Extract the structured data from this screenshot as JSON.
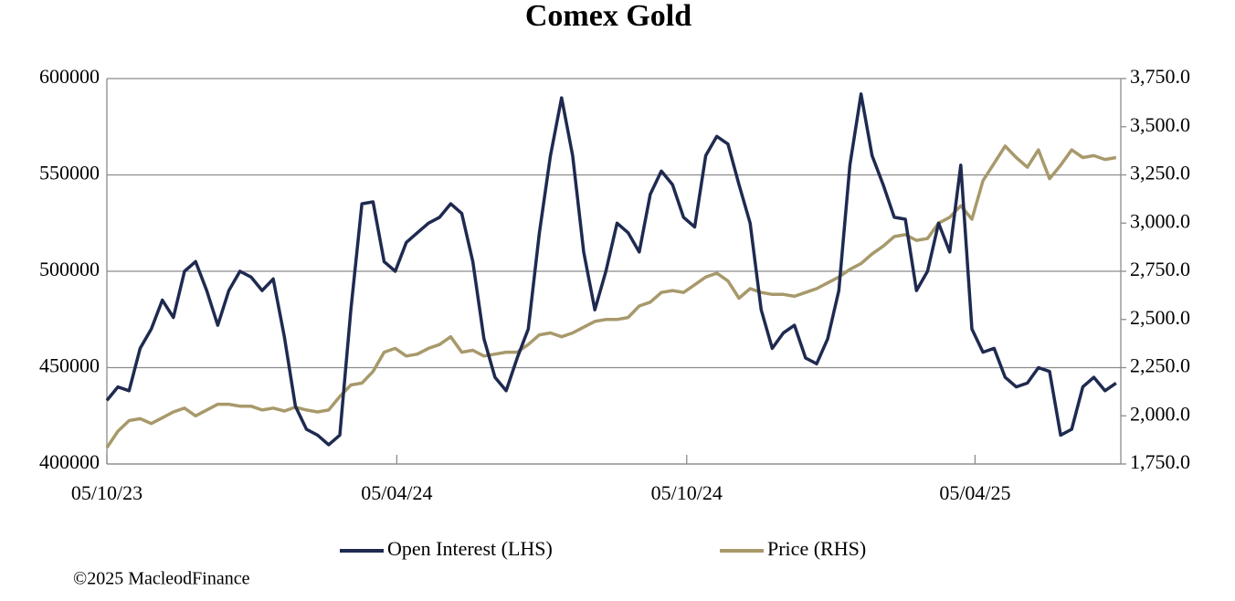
{
  "chart_data": {
    "type": "line",
    "title": "Comex Gold",
    "footnote": "©2025 MacleodFinance",
    "x": [
      "05/10/23",
      "12/10/23",
      "19/10/23",
      "26/10/23",
      "02/11/23",
      "09/11/23",
      "16/11/23",
      "23/11/23",
      "30/11/23",
      "07/12/23",
      "14/12/23",
      "21/12/23",
      "28/12/23",
      "04/01/24",
      "11/01/24",
      "18/01/24",
      "25/01/24",
      "01/02/24",
      "08/02/24",
      "15/02/24",
      "22/02/24",
      "29/02/24",
      "07/03/24",
      "14/03/24",
      "21/03/24",
      "28/03/24",
      "04/04/24",
      "11/04/24",
      "18/04/24",
      "25/04/24",
      "02/05/24",
      "09/05/24",
      "16/05/24",
      "23/05/24",
      "30/05/24",
      "06/06/24",
      "13/06/24",
      "20/06/24",
      "27/06/24",
      "04/07/24",
      "11/07/24",
      "18/07/24",
      "25/07/24",
      "01/08/24",
      "08/08/24",
      "15/08/24",
      "22/08/24",
      "29/08/24",
      "05/09/24",
      "12/09/24",
      "19/09/24",
      "26/09/24",
      "03/10/24",
      "10/10/24",
      "17/10/24",
      "24/10/24",
      "31/10/24",
      "07/11/24",
      "14/11/24",
      "21/11/24",
      "28/11/24",
      "05/12/24",
      "12/12/24",
      "19/12/24",
      "26/12/24",
      "02/01/25",
      "09/01/25",
      "16/01/25",
      "23/01/25",
      "30/01/25",
      "06/02/25",
      "13/02/25",
      "20/02/25",
      "27/02/25",
      "06/03/25",
      "13/03/25",
      "20/03/25",
      "27/03/25",
      "03/04/25",
      "10/04/25",
      "17/04/25",
      "24/04/25",
      "01/05/25",
      "08/05/25",
      "15/05/25",
      "22/05/25",
      "29/05/25",
      "05/06/25",
      "12/06/25",
      "19/06/25",
      "26/06/25",
      "03/07/25"
    ],
    "series": [
      {
        "name": "Open Interest (LHS)",
        "color": "#1f2a50",
        "values": [
          433000,
          440000,
          438000,
          460000,
          470000,
          485000,
          476000,
          500000,
          505000,
          490000,
          472000,
          490000,
          500000,
          497000,
          490000,
          496000,
          466000,
          430000,
          418000,
          415000,
          410000,
          415000,
          480000,
          535000,
          536000,
          505000,
          500000,
          515000,
          520000,
          525000,
          528000,
          535000,
          530000,
          505000,
          465000,
          445000,
          438000,
          455000,
          470000,
          520000,
          560000,
          590000,
          560000,
          510000,
          480000,
          500000,
          525000,
          520000,
          510000,
          540000,
          552000,
          545000,
          528000,
          523000,
          560000,
          570000,
          566000,
          545000,
          525000,
          480000,
          460000,
          468000,
          472000,
          455000,
          452000,
          465000,
          490000,
          555000,
          592000,
          560000,
          545000,
          528000,
          527000,
          490000,
          500000,
          525000,
          510000,
          555000,
          470000,
          458000,
          460000,
          445000,
          440000,
          442000,
          450000,
          448000,
          415000,
          418000,
          440000,
          445000,
          438000,
          442000
        ]
      },
      {
        "name": "Price (RHS)",
        "color": "#a8996b",
        "axis": "y2",
        "values": [
          1835,
          1920,
          1975,
          1985,
          1960,
          1990,
          2020,
          2040,
          2000,
          2030,
          2060,
          2060,
          2050,
          2050,
          2030,
          2040,
          2025,
          2045,
          2030,
          2020,
          2030,
          2100,
          2160,
          2170,
          2230,
          2330,
          2350,
          2310,
          2320,
          2350,
          2370,
          2410,
          2330,
          2340,
          2310,
          2320,
          2330,
          2330,
          2370,
          2420,
          2430,
          2410,
          2430,
          2460,
          2490,
          2500,
          2500,
          2510,
          2570,
          2590,
          2640,
          2650,
          2640,
          2680,
          2720,
          2740,
          2700,
          2610,
          2660,
          2640,
          2630,
          2630,
          2620,
          2640,
          2660,
          2690,
          2720,
          2760,
          2790,
          2840,
          2880,
          2930,
          2940,
          2910,
          2920,
          3000,
          3030,
          3090,
          3020,
          3220,
          3310,
          3400,
          3340,
          3290,
          3380,
          3230,
          3300,
          3380,
          3340,
          3350,
          3330,
          3340
        ]
      }
    ],
    "xlim": [
      "05/10/23",
      "06/07/25"
    ],
    "xticks": [
      "05/10/23",
      "05/04/24",
      "05/10/24",
      "05/04/25"
    ],
    "ylim": [
      400000,
      600000
    ],
    "yticks": [
      400000,
      450000,
      500000,
      550000,
      600000
    ],
    "y2lim": [
      1750,
      3750
    ],
    "y2ticks": [
      {
        "value": 1750,
        "label": "1,750.0"
      },
      {
        "value": 2000,
        "label": "2,000.0"
      },
      {
        "value": 2250,
        "label": "2,250.0"
      },
      {
        "value": 2500,
        "label": "2,500.0"
      },
      {
        "value": 2750,
        "label": "2,750.0"
      },
      {
        "value": 3000,
        "label": "3,000.0"
      },
      {
        "value": 3250,
        "label": "3,250.0"
      },
      {
        "value": 3500,
        "label": "3,500.0"
      },
      {
        "value": 3750,
        "label": "3,750.0"
      }
    ],
    "grid": true
  }
}
